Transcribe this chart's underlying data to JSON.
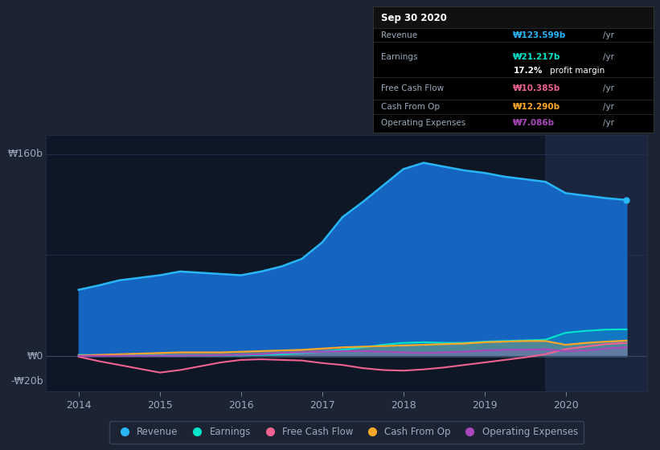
{
  "bg_color": "#1c2333",
  "plot_bg_color": "#0e1726",
  "highlight_bg": "#1a2540",
  "grid_color": "#243050",
  "text_color": "#9aacbe",
  "ylabel_160": "₩160b",
  "ylabel_0": "₩0",
  "ylabel_neg20": "-₩20b",
  "ylim": [
    -28,
    175
  ],
  "xlim_start": 2013.6,
  "xlim_end": 2021.0,
  "xticks": [
    2014,
    2015,
    2016,
    2017,
    2018,
    2019,
    2020
  ],
  "highlight_start": 2019.75,
  "highlight_end": 2021.0,
  "revenue_color": "#29b6f6",
  "earnings_color": "#00e5cc",
  "fcf_color": "#f06292",
  "cashop_color": "#ffa726",
  "opex_color": "#ab47bc",
  "revenue_fill_color": "#1565c0",
  "legend_items": [
    "Revenue",
    "Earnings",
    "Free Cash Flow",
    "Cash From Op",
    "Operating Expenses"
  ],
  "infobox_title": "Sep 30 2020",
  "infobox_rows": [
    {
      "label": "Revenue",
      "value": "₩123.599b",
      "unit": "/yr",
      "value_color": "#29b6f6",
      "sub": null
    },
    {
      "label": "Earnings",
      "value": "₩21.217b",
      "unit": "/yr",
      "value_color": "#00e5cc",
      "sub": "17.2% profit margin"
    },
    {
      "label": "Free Cash Flow",
      "value": "₩10.385b",
      "unit": "/yr",
      "value_color": "#f06292",
      "sub": null
    },
    {
      "label": "Cash From Op",
      "value": "₩12.290b",
      "unit": "/yr",
      "value_color": "#ffa726",
      "sub": null
    },
    {
      "label": "Operating Expenses",
      "value": "₩7.086b",
      "unit": "/yr",
      "value_color": "#ab47bc",
      "sub": null
    }
  ],
  "revenue": [
    [
      2014.0,
      52.5
    ],
    [
      2014.25,
      56
    ],
    [
      2014.5,
      60
    ],
    [
      2014.75,
      62
    ],
    [
      2015.0,
      64
    ],
    [
      2015.25,
      67
    ],
    [
      2015.5,
      66
    ],
    [
      2015.75,
      65
    ],
    [
      2016.0,
      64
    ],
    [
      2016.25,
      67
    ],
    [
      2016.5,
      71
    ],
    [
      2016.75,
      77
    ],
    [
      2017.0,
      90
    ],
    [
      2017.25,
      110
    ],
    [
      2017.5,
      122
    ],
    [
      2017.75,
      135
    ],
    [
      2018.0,
      148
    ],
    [
      2018.25,
      153
    ],
    [
      2018.5,
      150
    ],
    [
      2018.75,
      147
    ],
    [
      2019.0,
      145
    ],
    [
      2019.25,
      142
    ],
    [
      2019.5,
      140
    ],
    [
      2019.75,
      138
    ],
    [
      2020.0,
      129
    ],
    [
      2020.25,
      127
    ],
    [
      2020.5,
      125
    ],
    [
      2020.75,
      123.6
    ]
  ],
  "earnings": [
    [
      2014.0,
      1.0
    ],
    [
      2014.25,
      0.8
    ],
    [
      2014.5,
      0.5
    ],
    [
      2014.75,
      0.5
    ],
    [
      2015.0,
      0.5
    ],
    [
      2015.25,
      0.5
    ],
    [
      2015.5,
      0.5
    ],
    [
      2015.75,
      0.5
    ],
    [
      2016.0,
      0.5
    ],
    [
      2016.25,
      1.0
    ],
    [
      2016.5,
      1.5
    ],
    [
      2016.75,
      2.5
    ],
    [
      2017.0,
      3.5
    ],
    [
      2017.25,
      5.0
    ],
    [
      2017.5,
      7.0
    ],
    [
      2017.75,
      9.0
    ],
    [
      2018.0,
      10.5
    ],
    [
      2018.25,
      11.0
    ],
    [
      2018.5,
      10.5
    ],
    [
      2018.75,
      10.5
    ],
    [
      2019.0,
      11.5
    ],
    [
      2019.25,
      12.0
    ],
    [
      2019.5,
      12.5
    ],
    [
      2019.75,
      13.0
    ],
    [
      2020.0,
      18.5
    ],
    [
      2020.25,
      20.0
    ],
    [
      2020.5,
      21.0
    ],
    [
      2020.75,
      21.2
    ]
  ],
  "fcf": [
    [
      2014.0,
      -0.5
    ],
    [
      2014.25,
      -4.0
    ],
    [
      2014.5,
      -7.0
    ],
    [
      2014.75,
      -10.0
    ],
    [
      2015.0,
      -13.0
    ],
    [
      2015.25,
      -11.0
    ],
    [
      2015.5,
      -8.0
    ],
    [
      2015.75,
      -5.0
    ],
    [
      2016.0,
      -3.0
    ],
    [
      2016.25,
      -2.5
    ],
    [
      2016.5,
      -3.0
    ],
    [
      2016.75,
      -3.5
    ],
    [
      2017.0,
      -5.5
    ],
    [
      2017.25,
      -7.0
    ],
    [
      2017.5,
      -9.5
    ],
    [
      2017.75,
      -11.0
    ],
    [
      2018.0,
      -11.5
    ],
    [
      2018.25,
      -10.5
    ],
    [
      2018.5,
      -9.0
    ],
    [
      2018.75,
      -7.0
    ],
    [
      2019.0,
      -5.0
    ],
    [
      2019.25,
      -3.0
    ],
    [
      2019.5,
      -1.0
    ],
    [
      2019.75,
      1.5
    ],
    [
      2020.0,
      5.5
    ],
    [
      2020.25,
      7.5
    ],
    [
      2020.5,
      9.5
    ],
    [
      2020.75,
      10.4
    ]
  ],
  "cashop": [
    [
      2014.0,
      0.5
    ],
    [
      2014.25,
      1.0
    ],
    [
      2014.5,
      1.5
    ],
    [
      2014.75,
      2.0
    ],
    [
      2015.0,
      2.5
    ],
    [
      2015.25,
      3.0
    ],
    [
      2015.5,
      3.0
    ],
    [
      2015.75,
      3.0
    ],
    [
      2016.0,
      3.5
    ],
    [
      2016.25,
      4.0
    ],
    [
      2016.5,
      4.5
    ],
    [
      2016.75,
      5.0
    ],
    [
      2017.0,
      6.0
    ],
    [
      2017.25,
      7.0
    ],
    [
      2017.5,
      7.5
    ],
    [
      2017.75,
      8.0
    ],
    [
      2018.0,
      8.5
    ],
    [
      2018.25,
      9.0
    ],
    [
      2018.5,
      9.5
    ],
    [
      2018.75,
      10.0
    ],
    [
      2019.0,
      11.0
    ],
    [
      2019.25,
      11.5
    ],
    [
      2019.5,
      12.0
    ],
    [
      2019.75,
      12.0
    ],
    [
      2020.0,
      9.0
    ],
    [
      2020.25,
      10.5
    ],
    [
      2020.5,
      11.5
    ],
    [
      2020.75,
      12.3
    ]
  ],
  "opex": [
    [
      2014.0,
      0.2
    ],
    [
      2014.25,
      0.2
    ],
    [
      2014.5,
      0.3
    ],
    [
      2014.75,
      0.3
    ],
    [
      2015.0,
      0.3
    ],
    [
      2015.25,
      0.4
    ],
    [
      2015.5,
      0.5
    ],
    [
      2015.75,
      0.7
    ],
    [
      2016.0,
      1.0
    ],
    [
      2016.25,
      1.5
    ],
    [
      2016.5,
      2.5
    ],
    [
      2016.75,
      3.0
    ],
    [
      2017.0,
      3.5
    ],
    [
      2017.25,
      4.0
    ],
    [
      2017.5,
      4.0
    ],
    [
      2017.75,
      3.5
    ],
    [
      2018.0,
      3.0
    ],
    [
      2018.25,
      2.5
    ],
    [
      2018.5,
      3.0
    ],
    [
      2018.75,
      3.5
    ],
    [
      2019.0,
      4.5
    ],
    [
      2019.25,
      5.0
    ],
    [
      2019.5,
      5.0
    ],
    [
      2019.75,
      5.5
    ],
    [
      2020.0,
      4.0
    ],
    [
      2020.25,
      4.5
    ],
    [
      2020.5,
      6.0
    ],
    [
      2020.75,
      7.1
    ]
  ]
}
